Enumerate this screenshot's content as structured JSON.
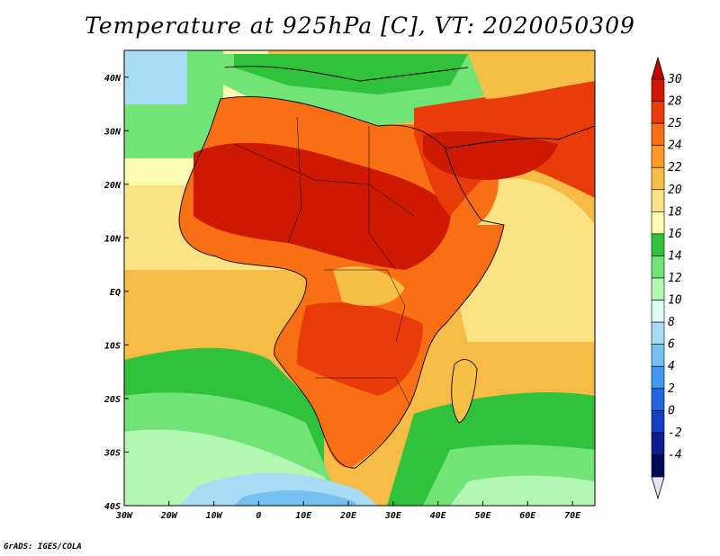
{
  "header": {
    "title": "Temperature at 925hPa [C], VT: 2020050309"
  },
  "footer": {
    "credit": "GrADS: IGES/COLA"
  },
  "map": {
    "variable": "temperature_925hPa",
    "units": "C",
    "valid_time": "2020050309",
    "lon_range": [
      -30,
      75
    ],
    "lat_range": [
      -40,
      45
    ],
    "lon_ticks": [
      "30W",
      "20W",
      "10W",
      "0",
      "10E",
      "20E",
      "30E",
      "40E",
      "50E",
      "60E",
      "70E"
    ],
    "lat_ticks": [
      "40N",
      "30N",
      "20N",
      "10N",
      "EQ",
      "10S",
      "20S",
      "30S",
      "40S"
    ]
  },
  "colorbar": {
    "labels": [
      "30",
      "28",
      "25",
      "24",
      "22",
      "20",
      "18",
      "16",
      "14",
      "12",
      "10",
      "8",
      "6",
      "4",
      "2",
      "0",
      "-2",
      "-4"
    ],
    "colors": [
      "#cc1900",
      "#ea3c0a",
      "#f86f14",
      "#fb9a24",
      "#f7bf45",
      "#fbe384",
      "#fdfbb0",
      "#2fc23a",
      "#72e376",
      "#b4f7b2",
      "#dff9f4",
      "#a8dcf5",
      "#76bff1",
      "#4297ee",
      "#2267e0",
      "#1441c4",
      "#0b1d8f",
      "#000a5a"
    ],
    "top_color": "#c20000",
    "bottom_color": "#e6e3fb"
  }
}
